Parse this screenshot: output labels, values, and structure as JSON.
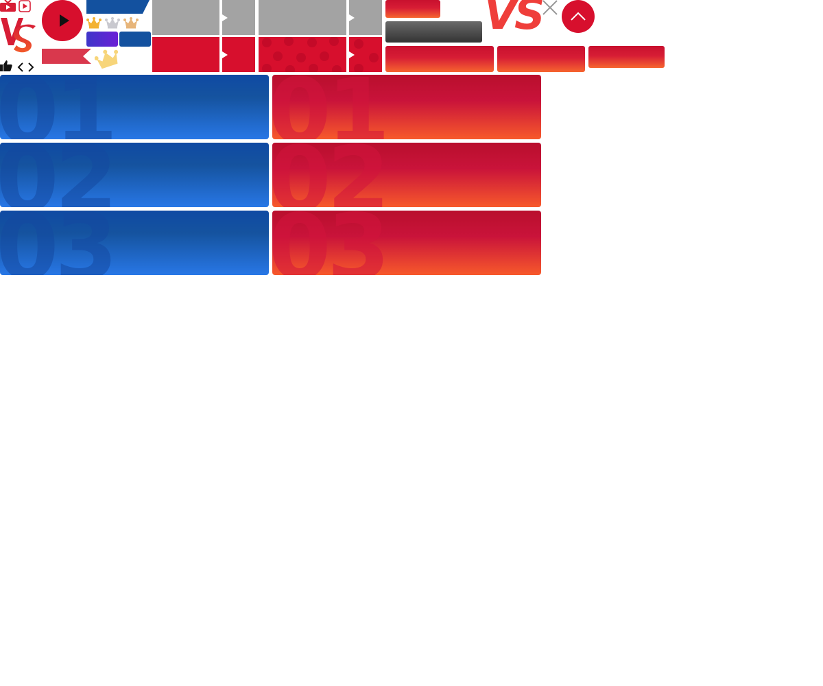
{
  "brand": {
    "logo_text": "VS",
    "logo_text_large": "VS"
  },
  "icons": {
    "tv": "tv-icon",
    "play_outline": "play-outline-icon",
    "play_circle": "play-circle-icon",
    "thumbs_up": "thumbs-up-icon",
    "chevron_left": "chevron-left-icon",
    "chevron_right": "chevron-right-icon",
    "close": "close-icon",
    "scroll_top": "chevron-up-icon",
    "crowns": [
      "crown-gold-icon",
      "crown-silver-icon",
      "crown-bronze-icon"
    ],
    "crown_tilted": "crown-gold-tilted-icon"
  },
  "colors": {
    "brand_red": "#d71d35",
    "brand_blue": "#13519f",
    "purple": "#5a2ad8",
    "tile_gray": "#a3a3a3",
    "gold": "#f3b233",
    "silver": "#c9c9cf",
    "bronze": "#e7b57a"
  },
  "ranking": {
    "blue_cards": [
      {
        "rank": "01"
      },
      {
        "rank": "02"
      },
      {
        "rank": "03"
      }
    ],
    "red_cards": [
      {
        "rank": "01"
      },
      {
        "rank": "02"
      },
      {
        "rank": "03"
      }
    ]
  }
}
